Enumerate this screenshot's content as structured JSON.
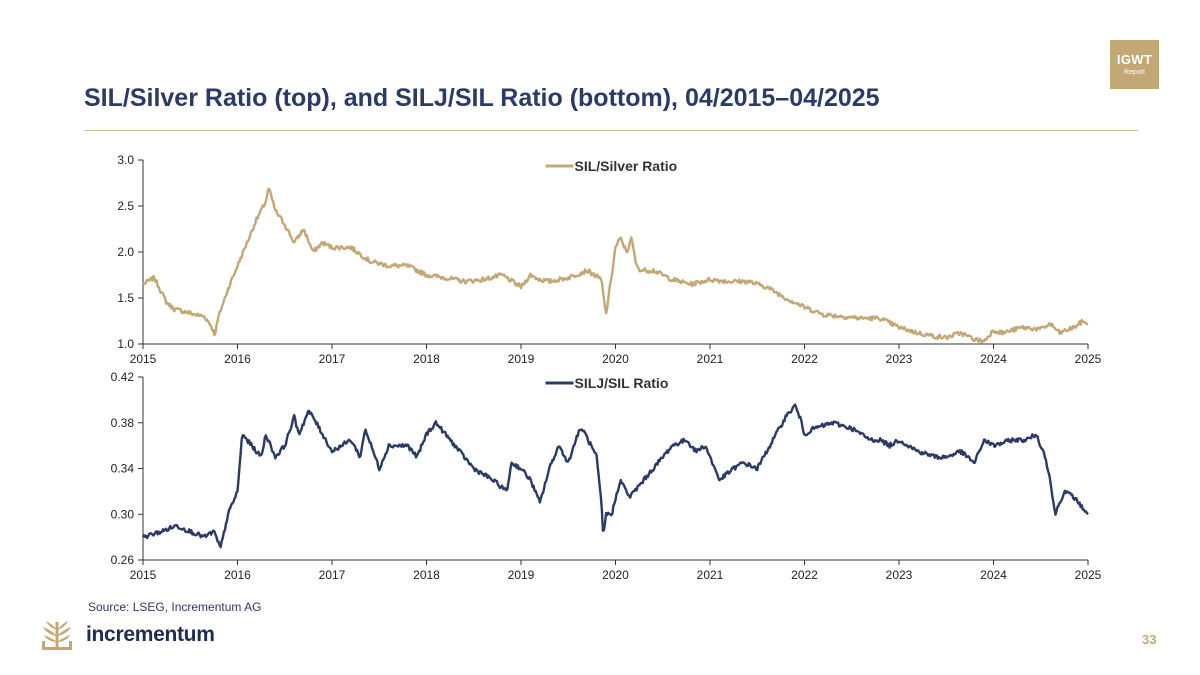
{
  "header": {
    "title": "SIL/Silver Ratio (top), and SILJ/SIL Ratio (bottom), 04/2015–04/2025",
    "badge_line1": "IGWT",
    "badge_line2": "Report"
  },
  "footer": {
    "source": "Source: LSEG, Incrementum AG",
    "brand": "incrementum",
    "page_number": "33"
  },
  "colors": {
    "gold": "#c3a876",
    "navy": "#2b3a67",
    "axis": "#333333"
  },
  "chart_data": [
    {
      "type": "line",
      "title": "",
      "xlabel": "",
      "ylabel": "",
      "x_ticks": [
        "2015",
        "2016",
        "2017",
        "2018",
        "2019",
        "2020",
        "2021",
        "2022",
        "2023",
        "2024",
        "2025"
      ],
      "y_ticks": [
        "1.0",
        "1.5",
        "2.0",
        "2.5",
        "3.0"
      ],
      "xlim": [
        2015.0,
        2025.0
      ],
      "ylim": [
        1.0,
        3.0
      ],
      "grid": false,
      "legend_position": "top-center",
      "series": [
        {
          "name": "SIL/Silver Ratio",
          "color": "#c3a876",
          "x": [
            2015.0,
            2015.12,
            2015.25,
            2015.33,
            2015.45,
            2015.55,
            2015.65,
            2015.72,
            2015.76,
            2015.8,
            2015.9,
            2016.0,
            2016.1,
            2016.2,
            2016.3,
            2016.33,
            2016.4,
            2016.5,
            2016.6,
            2016.7,
            2016.8,
            2016.9,
            2017.0,
            2017.2,
            2017.4,
            2017.6,
            2017.8,
            2018.0,
            2018.2,
            2018.4,
            2018.6,
            2018.8,
            2019.0,
            2019.1,
            2019.2,
            2019.3,
            2019.5,
            2019.7,
            2019.85,
            2019.9,
            2019.96,
            2020.0,
            2020.05,
            2020.12,
            2020.17,
            2020.22,
            2020.27,
            2020.4,
            2020.6,
            2020.8,
            2021.0,
            2021.2,
            2021.4,
            2021.6,
            2021.8,
            2022.0,
            2022.2,
            2022.4,
            2022.6,
            2022.8,
            2023.0,
            2023.2,
            2023.4,
            2023.5,
            2023.65,
            2023.8,
            2023.9,
            2024.0,
            2024.1,
            2024.3,
            2024.5,
            2024.6,
            2024.7,
            2024.85,
            2024.95,
            2025.0
          ],
          "values": [
            1.65,
            1.72,
            1.45,
            1.38,
            1.35,
            1.32,
            1.3,
            1.2,
            1.1,
            1.3,
            1.6,
            1.85,
            2.1,
            2.35,
            2.55,
            2.7,
            2.45,
            2.3,
            2.1,
            2.25,
            2.0,
            2.1,
            2.05,
            2.05,
            1.9,
            1.85,
            1.85,
            1.75,
            1.72,
            1.68,
            1.7,
            1.75,
            1.62,
            1.75,
            1.7,
            1.68,
            1.72,
            1.8,
            1.7,
            1.32,
            1.75,
            2.05,
            2.15,
            2.0,
            2.15,
            1.85,
            1.8,
            1.8,
            1.7,
            1.65,
            1.7,
            1.68,
            1.68,
            1.62,
            1.5,
            1.4,
            1.32,
            1.3,
            1.28,
            1.28,
            1.18,
            1.12,
            1.08,
            1.07,
            1.12,
            1.05,
            1.03,
            1.15,
            1.12,
            1.18,
            1.16,
            1.22,
            1.12,
            1.18,
            1.25,
            1.22
          ]
        }
      ]
    },
    {
      "type": "line",
      "title": "",
      "xlabel": "",
      "ylabel": "",
      "x_ticks": [
        "2015",
        "2016",
        "2017",
        "2018",
        "2019",
        "2020",
        "2021",
        "2022",
        "2023",
        "2024",
        "2025"
      ],
      "y_ticks": [
        "0.26",
        "0.30",
        "0.34",
        "0.38",
        "0.42"
      ],
      "xlim": [
        2015.0,
        2025.0
      ],
      "ylim": [
        0.26,
        0.42
      ],
      "grid": false,
      "legend_position": "top-center",
      "series": [
        {
          "name": "SILJ/SIL Ratio",
          "color": "#2b3a67",
          "x": [
            2015.0,
            2015.2,
            2015.35,
            2015.5,
            2015.65,
            2015.75,
            2015.82,
            2015.9,
            2016.0,
            2016.05,
            2016.15,
            2016.25,
            2016.3,
            2016.4,
            2016.5,
            2016.6,
            2016.65,
            2016.75,
            2016.8,
            2016.9,
            2017.0,
            2017.2,
            2017.3,
            2017.35,
            2017.5,
            2017.6,
            2017.8,
            2017.9,
            2018.0,
            2018.1,
            2018.2,
            2018.3,
            2018.5,
            2018.7,
            2018.85,
            2018.9,
            2019.0,
            2019.1,
            2019.2,
            2019.3,
            2019.4,
            2019.5,
            2019.6,
            2019.65,
            2019.8,
            2019.85,
            2019.87,
            2019.9,
            2019.96,
            2020.05,
            2020.15,
            2020.3,
            2020.4,
            2020.6,
            2020.75,
            2020.85,
            2020.95,
            2021.1,
            2021.25,
            2021.35,
            2021.5,
            2021.7,
            2021.8,
            2021.9,
            2021.95,
            2022.0,
            2022.1,
            2022.3,
            2022.5,
            2022.7,
            2022.8,
            2022.9,
            2023.0,
            2023.2,
            2023.4,
            2023.5,
            2023.65,
            2023.8,
            2023.9,
            2024.0,
            2024.2,
            2024.35,
            2024.45,
            2024.55,
            2024.6,
            2024.65,
            2024.75,
            2024.85,
            2024.9,
            2024.95,
            2025.0
          ],
          "values": [
            0.28,
            0.285,
            0.29,
            0.285,
            0.28,
            0.285,
            0.27,
            0.3,
            0.32,
            0.37,
            0.36,
            0.35,
            0.37,
            0.35,
            0.36,
            0.385,
            0.37,
            0.39,
            0.385,
            0.37,
            0.355,
            0.365,
            0.35,
            0.375,
            0.34,
            0.36,
            0.36,
            0.35,
            0.37,
            0.38,
            0.37,
            0.36,
            0.34,
            0.33,
            0.32,
            0.345,
            0.34,
            0.33,
            0.31,
            0.34,
            0.36,
            0.345,
            0.37,
            0.375,
            0.35,
            0.31,
            0.28,
            0.3,
            0.3,
            0.33,
            0.315,
            0.33,
            0.34,
            0.36,
            0.365,
            0.355,
            0.36,
            0.33,
            0.34,
            0.345,
            0.34,
            0.37,
            0.385,
            0.395,
            0.385,
            0.37,
            0.375,
            0.38,
            0.375,
            0.365,
            0.365,
            0.36,
            0.365,
            0.355,
            0.35,
            0.35,
            0.355,
            0.345,
            0.365,
            0.36,
            0.365,
            0.365,
            0.37,
            0.35,
            0.33,
            0.3,
            0.32,
            0.315,
            0.31,
            0.305,
            0.3
          ]
        }
      ]
    }
  ]
}
